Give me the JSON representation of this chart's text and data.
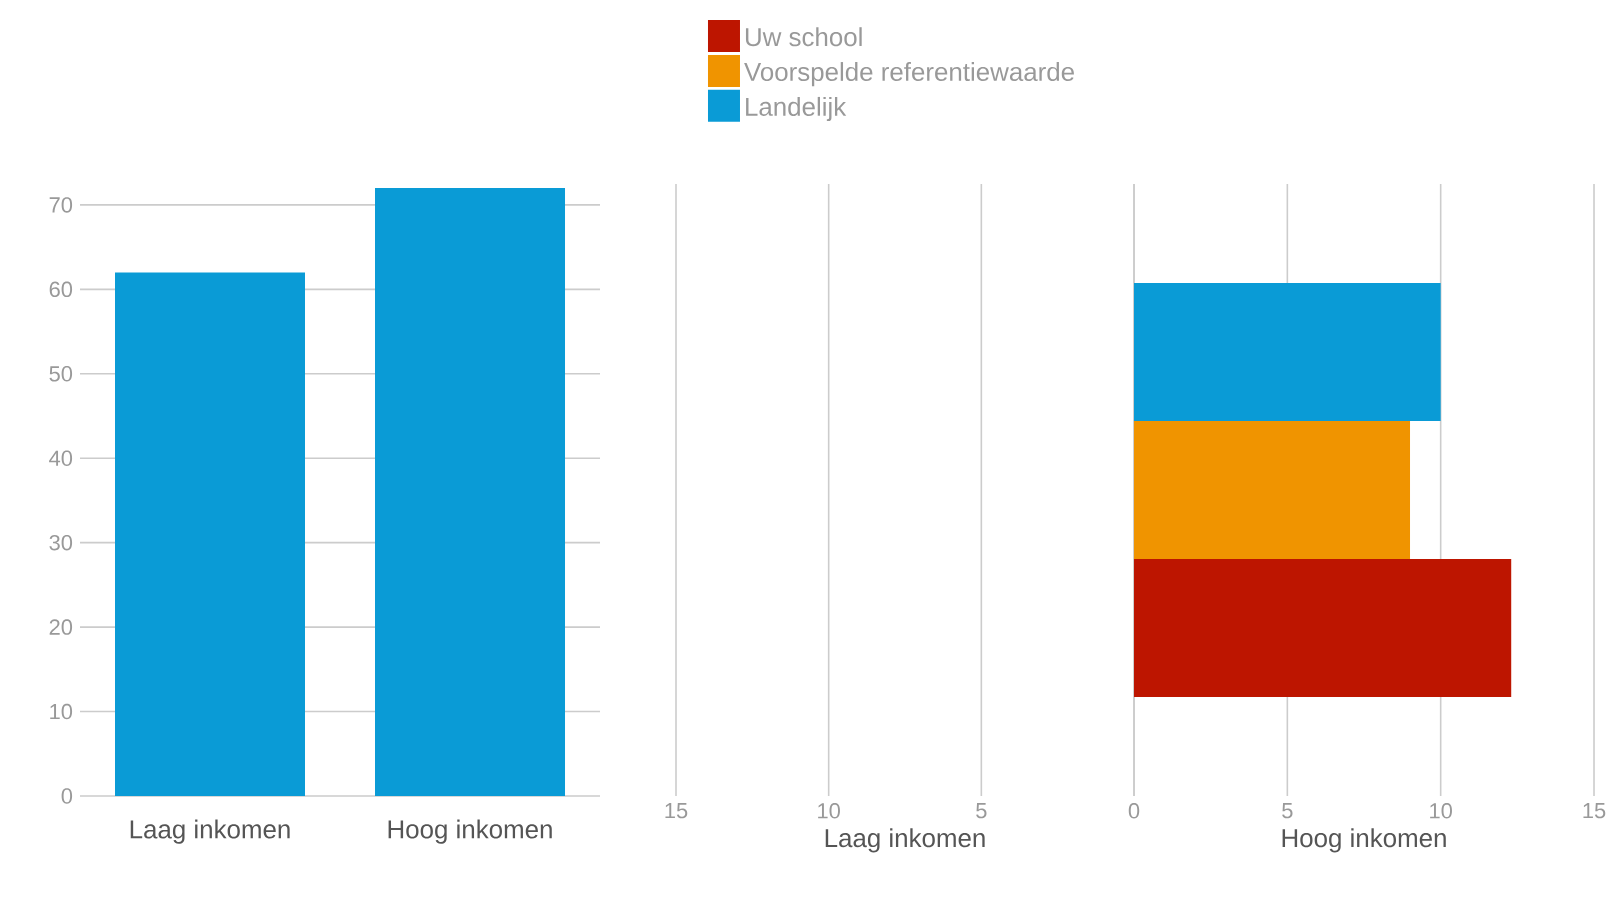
{
  "chart_data": [
    {
      "type": "bar",
      "categories": [
        "Laag inkomen",
        "Hoog inkomen"
      ],
      "values": [
        62,
        72
      ],
      "color": "#0a9bd6",
      "ylim": [
        0,
        72
      ],
      "yticks": [
        0,
        10,
        20,
        30,
        40,
        50,
        60,
        70
      ],
      "grid": "y"
    },
    {
      "type": "bar",
      "orientation": "horizontal",
      "categories": [
        null
      ],
      "values": [
        null
      ],
      "xlabel": "Laag inkomen",
      "xlim": [
        15,
        0
      ],
      "xticks": [
        15,
        10,
        5,
        {
          "value": 0,
          "label": null
        }
      ],
      "grid": "x"
    },
    {
      "type": "bar",
      "orientation": "horizontal",
      "categories": [
        null
      ],
      "xlabel": "Hoog inkomen",
      "xlim": [
        0,
        15
      ],
      "xticks": [
        0,
        5,
        10,
        15
      ],
      "grid": "x",
      "legend": "top",
      "series": [
        {
          "name": "Uw school",
          "color": "#bd1500",
          "values": [
            12.3
          ]
        },
        {
          "name": "Voorspelde referentiewaarde",
          "color": "#f09400",
          "values": [
            9
          ]
        },
        {
          "name": "Landelijk",
          "color": "#0a9bd6",
          "values": [
            10
          ]
        }
      ]
    }
  ]
}
